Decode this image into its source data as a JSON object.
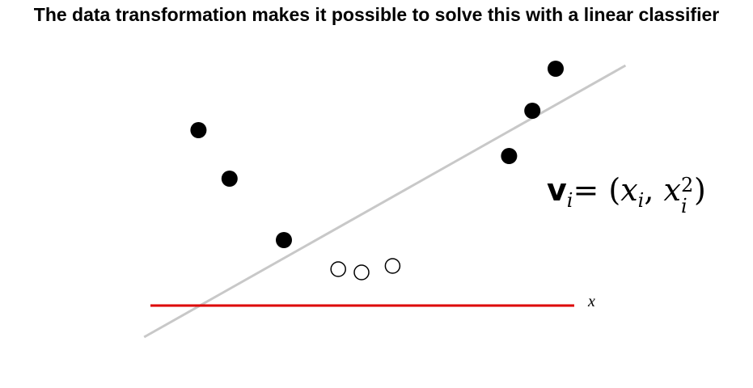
{
  "slide": {
    "title": "The data transformation makes it possible to solve this with a linear classifier"
  },
  "chart_data": {
    "type": "scatter",
    "xlabel": "x",
    "series": [
      {
        "marker": "filled",
        "color": "#000000",
        "points": [
          [
            -2.1,
            4.4
          ],
          [
            -1.7,
            2.9
          ],
          [
            -1.0,
            1.0
          ],
          [
            1.9,
            3.6
          ],
          [
            2.2,
            5.0
          ],
          [
            2.5,
            6.3
          ]
        ]
      },
      {
        "marker": "open",
        "color": "#000000",
        "points": [
          [
            -0.3,
            0.1
          ],
          [
            0.0,
            0.0
          ],
          [
            0.4,
            0.2
          ]
        ]
      }
    ],
    "x_axis_line": {
      "color": "#dd0000"
    },
    "decision_boundary": {
      "color": "#c8c8c8",
      "from": [
        -2.8,
        -2.0
      ],
      "to": [
        3.4,
        6.4
      ]
    }
  },
  "formula": {
    "lhs": "v",
    "lhs_sub": "i",
    "equals": "=",
    "open_paren": "(",
    "x1": "x",
    "x1_sub": "i",
    "comma": ",",
    "x2": "x",
    "x2_sub": "i",
    "x2_sup": "2",
    "close_paren": ")"
  }
}
